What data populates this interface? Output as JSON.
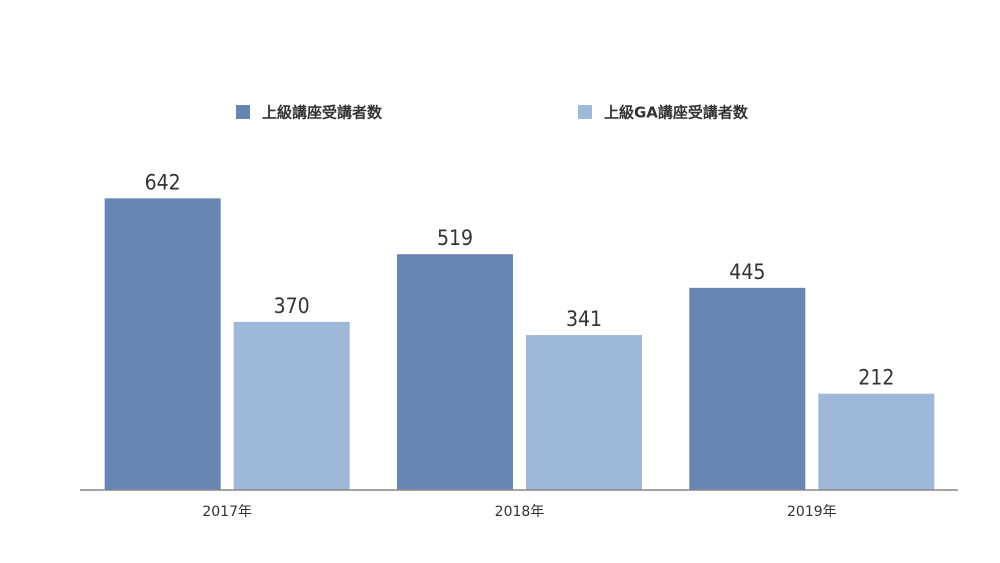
{
  "chart_data": {
    "type": "bar",
    "categories": [
      "2017年",
      "2018年",
      "2019年"
    ],
    "series": [
      {
        "name": "上級講座受講者数",
        "color": "#6685b3",
        "values": [
          642,
          519,
          445
        ]
      },
      {
        "name": "上級GA講座受講者数",
        "color": "#9db8d8",
        "values": [
          370,
          341,
          212
        ]
      }
    ],
    "ylim": [
      0,
      700
    ]
  }
}
